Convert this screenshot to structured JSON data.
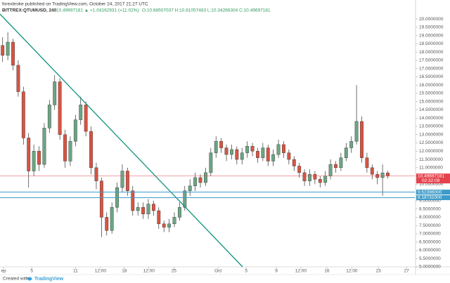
{
  "chart_data": {
    "type": "candlestick",
    "attribution": "forexbroke published on TradingView.com, October 24, 2017 21:27 UTC",
    "title": "BITTREX:QTUMUSD, 240",
    "change": "10.49697181 ▲ +1.04162931 (+11.02%)",
    "ohlc": "O:10.68507037 H:10.81057483 L:10.34266304 C:10.49697181",
    "footer": "Created with",
    "brand": "TradingView",
    "up_color": "#6ba583",
    "down_color": "#d75442",
    "series": [
      {
        "open": [
          18.4,
          17.8,
          18.6,
          17.2,
          15.6,
          12.8,
          10.8,
          12.0,
          11.2,
          13.4,
          14.8,
          16.2,
          13.0,
          11.4,
          12.6,
          13.9,
          14.8,
          13.2,
          11.0,
          10.2,
          8.0,
          7.2,
          8.6,
          9.8,
          10.8,
          9.6,
          8.4,
          8.6,
          8.2,
          8.8,
          8.4,
          7.6,
          7.4,
          7.6,
          8.0,
          8.6,
          9.6,
          9.9,
          10.4,
          10.1,
          10.7,
          11.9,
          12.6,
          12.2,
          11.8,
          12.1,
          11.5,
          11.9,
          12.3,
          12.0,
          11.6,
          12.2,
          11.4,
          11.8,
          12.4,
          11.9,
          11.5,
          11.1,
          10.7,
          10.2,
          10.6,
          10.3,
          10.1,
          10.5,
          11.2,
          11.0,
          11.6,
          12.2,
          12.6,
          13.8,
          11.6,
          11.0,
          10.6,
          10.4,
          10.68507037
        ],
        "high": [
          18.9,
          19.2,
          18.8,
          17.5,
          15.9,
          13.1,
          12.4,
          12.3,
          13.7,
          15.1,
          16.6,
          16.4,
          13.3,
          12.9,
          14.2,
          15.3,
          15.0,
          13.5,
          11.3,
          10.4,
          8.3,
          8.9,
          10.1,
          11.2,
          11.0,
          9.9,
          8.9,
          8.9,
          9.1,
          9.0,
          8.6,
          7.8,
          7.9,
          8.3,
          8.9,
          9.9,
          10.3,
          10.7,
          10.6,
          11.0,
          12.2,
          12.9,
          12.8,
          12.4,
          12.4,
          12.3,
          12.2,
          12.6,
          12.5,
          12.2,
          12.5,
          12.4,
          12.1,
          12.7,
          12.6,
          12.1,
          11.7,
          11.3,
          10.9,
          10.9,
          10.8,
          10.5,
          10.8,
          11.5,
          11.4,
          11.9,
          12.5,
          12.9,
          16.0,
          14.1,
          11.9,
          11.2,
          10.8,
          11.2,
          10.81057483
        ],
        "low": [
          17.4,
          17.5,
          16.9,
          15.3,
          12.4,
          9.8,
          10.5,
          10.8,
          11.0,
          13.1,
          14.5,
          12.7,
          11.0,
          11.1,
          12.3,
          13.6,
          12.9,
          10.6,
          9.7,
          6.8,
          6.9,
          7.0,
          8.3,
          9.5,
          9.3,
          8.1,
          8.1,
          7.9,
          7.9,
          8.1,
          7.3,
          7.1,
          7.1,
          7.4,
          7.8,
          8.4,
          9.3,
          9.6,
          9.8,
          9.9,
          10.5,
          11.6,
          11.9,
          11.4,
          11.5,
          11.2,
          11.2,
          11.6,
          11.7,
          11.3,
          11.4,
          11.1,
          11.1,
          11.6,
          11.6,
          11.2,
          10.8,
          10.4,
          9.9,
          9.9,
          10.0,
          9.8,
          9.9,
          10.3,
          10.7,
          10.8,
          11.4,
          11.9,
          12.4,
          11.3,
          10.7,
          10.3,
          10.0,
          9.3,
          10.34266304
        ],
        "close": [
          17.8,
          18.6,
          17.2,
          15.6,
          12.8,
          10.8,
          12.0,
          11.2,
          13.4,
          14.8,
          16.2,
          13.0,
          11.4,
          12.6,
          13.9,
          14.8,
          13.2,
          11.0,
          10.2,
          8.0,
          7.2,
          8.6,
          9.8,
          10.8,
          9.6,
          8.4,
          8.6,
          8.2,
          8.8,
          8.4,
          7.6,
          7.4,
          7.6,
          8.0,
          8.6,
          9.6,
          9.9,
          10.4,
          10.1,
          10.7,
          11.9,
          12.6,
          12.2,
          11.8,
          12.1,
          11.5,
          11.9,
          12.3,
          12.0,
          11.6,
          12.2,
          11.4,
          11.8,
          12.4,
          11.9,
          11.5,
          11.1,
          10.7,
          10.2,
          10.6,
          10.3,
          10.1,
          10.5,
          11.2,
          11.0,
          11.6,
          12.2,
          12.6,
          13.8,
          11.6,
          11.0,
          10.6,
          10.4,
          10.69,
          10.49697181
        ]
      }
    ],
    "xlim": [
      -0.5,
      79.2
    ],
    "xticks": [
      {
        "value": 0.2,
        "label": "ep"
      },
      {
        "value": 5.6,
        "label": "5"
      },
      {
        "value": 14,
        "label": "11"
      },
      {
        "value": 18.8,
        "label": "12:00"
      },
      {
        "value": 23.4,
        "label": "18"
      },
      {
        "value": 28.1,
        "label": "12:00"
      },
      {
        "value": 32.9,
        "label": "25"
      },
      {
        "value": 41.4,
        "label": "Oct"
      },
      {
        "value": 46.8,
        "label": "5"
      },
      {
        "value": 52.6,
        "label": "9"
      },
      {
        "value": 57.3,
        "label": "12:00"
      },
      {
        "value": 62.3,
        "label": "16"
      },
      {
        "value": 67.1,
        "label": "12:00"
      },
      {
        "value": 72.2,
        "label": "23"
      },
      {
        "value": 77.6,
        "label": "27"
      }
    ],
    "ylim": [
      5.0,
      20.3
    ],
    "yticks": [
      {
        "value": 5.0,
        "label": "5.0000000"
      },
      {
        "value": 5.5,
        "label": "5.5000000"
      },
      {
        "value": 6.0,
        "label": "6.0000000"
      },
      {
        "value": 6.5,
        "label": "6.5000000"
      },
      {
        "value": 7.0,
        "label": "7.0000000"
      },
      {
        "value": 7.5,
        "label": "7.5000000"
      },
      {
        "value": 8.0,
        "label": "8.0000000"
      },
      {
        "value": 8.5,
        "label": "8.5000000"
      },
      {
        "value": 9.0,
        "label": "9.0000000"
      },
      {
        "value": 9.5,
        "label": "9.5000000"
      },
      {
        "value": 10.0,
        "label": "10.0000000"
      },
      {
        "value": 10.5,
        "label": "10.5000000"
      },
      {
        "value": 11.0,
        "label": "11.0000000"
      },
      {
        "value": 11.5,
        "label": "11.5000000"
      },
      {
        "value": 12.0,
        "label": "12.0000000"
      },
      {
        "value": 12.5,
        "label": "12.5000000"
      },
      {
        "value": 13.0,
        "label": "13.0000000"
      },
      {
        "value": 13.5,
        "label": "13.5000000"
      },
      {
        "value": 14.0,
        "label": "14.0000000"
      },
      {
        "value": 14.5,
        "label": "14.5000000"
      },
      {
        "value": 15.0,
        "label": "15.0000000"
      },
      {
        "value": 15.5,
        "label": "15.5000000"
      },
      {
        "value": 16.0,
        "label": "16.0000000"
      },
      {
        "value": 16.5,
        "label": "16.5000000"
      },
      {
        "value": 17.0,
        "label": "17.0000000"
      },
      {
        "value": 17.5,
        "label": "17.5000000"
      },
      {
        "value": 18.0,
        "label": "18.0000000"
      },
      {
        "value": 18.5,
        "label": "18.5000000"
      },
      {
        "value": 19.0,
        "label": "19.0000000"
      },
      {
        "value": 19.5,
        "label": "19.5000000"
      },
      {
        "value": 20.0,
        "label": "20.0000000"
      }
    ],
    "grid": false,
    "trendline": {
      "x": [
        -0.5,
        46.1
      ],
      "y": [
        20.3,
        5.0
      ],
      "color": "#13937f"
    },
    "price_lines": [
      {
        "value": 10.49697181,
        "label": "10.49697181",
        "color": "#e5434d",
        "note": "02:32:09"
      },
      {
        "value": 9.52396,
        "label": "9.52396000",
        "color": "#3d9bc9"
      },
      {
        "value": 9.18731,
        "label": "9.18731000",
        "color": "#3d9bc9"
      }
    ]
  }
}
